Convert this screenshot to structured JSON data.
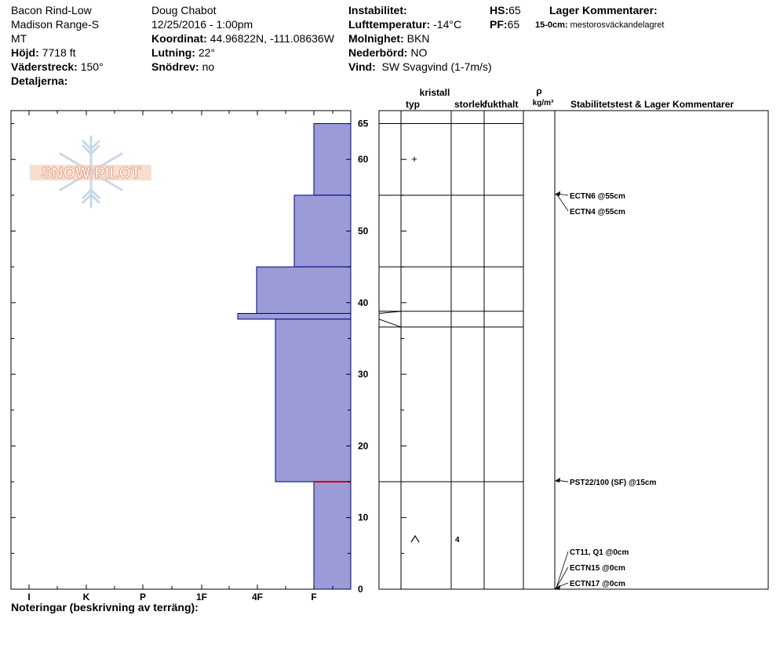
{
  "header": {
    "location": "Bacon Rind-Low",
    "range": "Madison Range-S",
    "state": "MT",
    "elevation_label": "Höjd:",
    "elevation_value": "7718 ft",
    "aspect_label": "Väderstreck:",
    "aspect_value": "150°",
    "details_label": "Detaljerna:",
    "observer": "Doug Chabot",
    "datetime": "12/25/2016 - 1:00pm",
    "coord_label": "Koordinat:",
    "coord_value": "44.96822N, -111.08636W",
    "slope_label": "Lutning:",
    "slope_value": "22°",
    "drift_label": "Snödrev:",
    "drift_value": "no",
    "instability_label": "Instabilitet:",
    "airtemp_label": "Lufttemperatur:",
    "airtemp_value": "-14°C",
    "sky_label": "Molnighet:",
    "sky_value": "BKN",
    "precip_label": "Nederbörd:",
    "precip_value": "NO",
    "wind_label": "Vind:",
    "wind_value": "SW  Svagvind (1-7m/s)",
    "hs_label": "HS:",
    "hs_value": "65",
    "pf_label": "PF:",
    "pf_value": "65",
    "layer_comments_title": "Lager Kommentarer:",
    "layer_comment_range": "15-0cm:",
    "layer_comment_text": "mestorosväckandelagret"
  },
  "notes_label": "Noteringar (beskrivning av terräng):",
  "logo_text": "SNOW PILOT",
  "colors": {
    "bar_fill": "#9b9bd7",
    "bar_edge": "#000080",
    "red_line": "#cc0000",
    "logo": "#e8a080",
    "logo_flake": "#c8d8e8"
  },
  "chart_data": {
    "type": "snow_profile",
    "y_label_unit": "cm",
    "ylim": [
      0,
      65
    ],
    "y_ticks": [
      "0",
      "10",
      "20",
      "30",
      "40",
      "50",
      "60",
      "65"
    ],
    "hardness_ticks": [
      "I",
      "K",
      "P",
      "1F",
      "4F",
      "F"
    ],
    "hardness_profile": [
      {
        "top": 65,
        "bottom": 55,
        "hardness": "F"
      },
      {
        "top": 55,
        "bottom": 45,
        "hardness": "F+"
      },
      {
        "top": 45,
        "bottom": 38.5,
        "hardness": "4F-"
      },
      {
        "top": 38.5,
        "bottom": 37.7,
        "hardness": "1F-"
      },
      {
        "top": 37.7,
        "bottom": 15,
        "hardness": "4F+"
      },
      {
        "top": 15,
        "bottom": 0,
        "hardness": "F"
      }
    ],
    "red_line_at": 15,
    "layer_boundaries_right": [
      65,
      55,
      45,
      38.8,
      36.6,
      15
    ],
    "crystal_types": [
      {
        "depth": 60,
        "symbol": "+"
      },
      {
        "depth": 7,
        "symbol": "^"
      }
    ],
    "crystal_sizes": [
      {
        "depth": 7,
        "value": "4"
      }
    ],
    "columns": {
      "typ": "typ",
      "kristall": "kristall",
      "storlek": "storlek",
      "fukthalt": "fukthalt",
      "rho": "ρ",
      "density_unit": "kg/m³",
      "stability": "Stabilitetstest & Lager Kommentarer"
    },
    "tests": [
      {
        "label": "ECTN6 @55cm",
        "depth": 55
      },
      {
        "label": "ECTN4 @55cm",
        "depth": 55
      },
      {
        "label": "PST22/100 (SF) @15cm",
        "depth": 15
      },
      {
        "label": "CT11, Q1 @0cm",
        "depth": 0
      },
      {
        "label": "ECTN15 @0cm",
        "depth": 0
      },
      {
        "label": "ECTN17 @0cm",
        "depth": 0
      }
    ]
  }
}
